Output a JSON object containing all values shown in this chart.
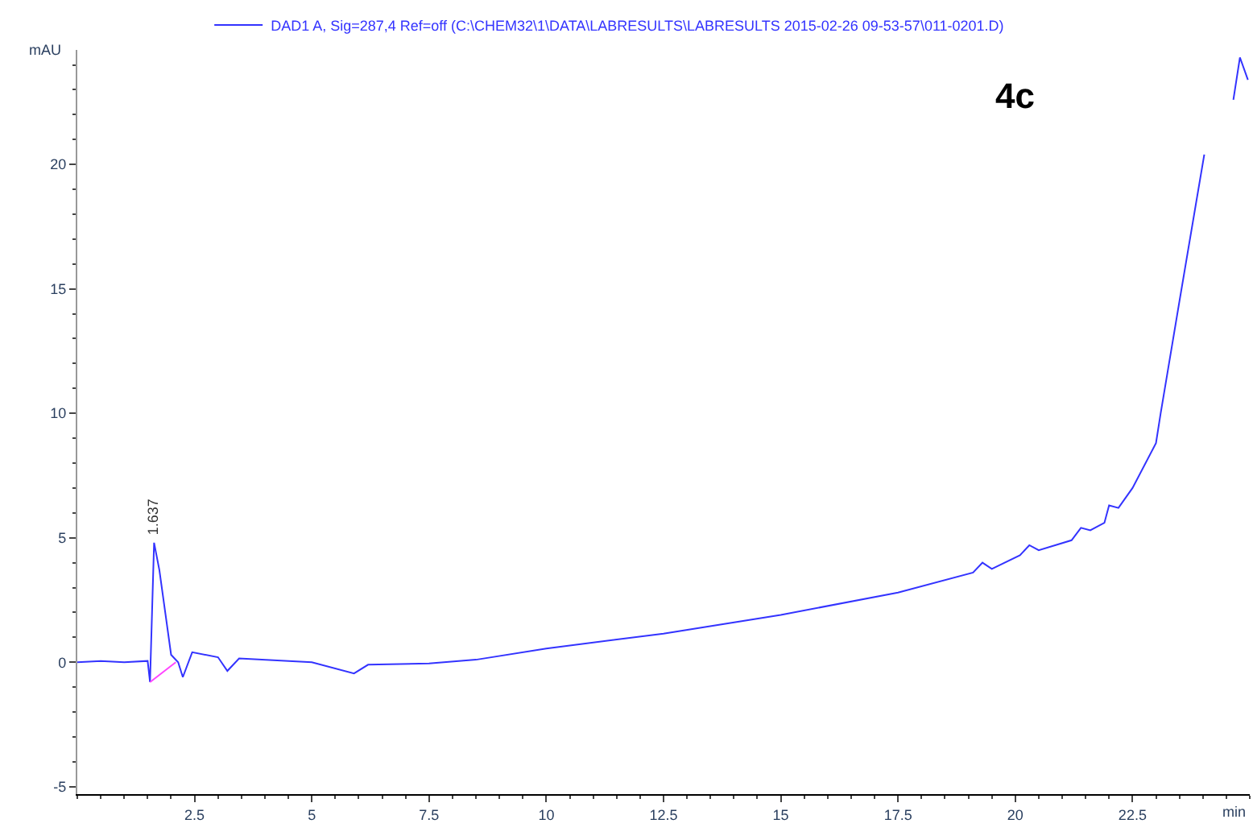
{
  "chart_data": {
    "type": "line",
    "title": "4c",
    "xlabel": "min",
    "ylabel": "mAU",
    "xlim": [
      0,
      25
    ],
    "ylim": [
      -5.3,
      24.6
    ],
    "xticks": [
      2.5,
      5,
      7.5,
      10,
      12.5,
      15,
      17.5,
      20,
      22.5
    ],
    "yticks": [
      -5,
      0,
      5,
      10,
      15,
      20
    ],
    "legend": "top left",
    "marker": "none",
    "line_style": "solid",
    "annotations": [
      {
        "text": "1.637",
        "x": 1.637,
        "y": 4.8
      }
    ],
    "series": [
      {
        "name": "DAD1 A, Sig=287,4 Ref=off (C:\\CHEM32\\1\\DATA\\LABRESULTS\\LABRESULTS 2015-02-26 09-53-57\\011-0201.D)",
        "color": "#3333ff",
        "x": [
          0,
          0.5,
          1.0,
          1.5,
          1.55,
          1.637,
          1.75,
          2.0,
          2.15,
          2.25,
          2.45,
          3.0,
          3.2,
          3.45,
          5.0,
          5.9,
          6.2,
          7.5,
          8.5,
          10.0,
          12.5,
          15.0,
          17.5,
          19.1,
          19.3,
          19.5,
          20.1,
          20.3,
          20.5,
          21.2,
          21.4,
          21.6,
          21.9,
          22.0,
          22.2,
          22.5,
          23.0,
          23.1,
          23.5,
          24.03,
          24.3,
          24.65,
          24.79,
          24.96
        ],
        "values": [
          0,
          0.05,
          0.0,
          0.05,
          -0.8,
          4.8,
          3.7,
          0.3,
          0.0,
          -0.6,
          0.4,
          0.2,
          -0.35,
          0.15,
          0.0,
          -0.45,
          -0.1,
          -0.05,
          0.1,
          0.55,
          1.15,
          1.9,
          2.8,
          3.6,
          4.0,
          3.75,
          4.3,
          4.7,
          4.5,
          4.9,
          5.4,
          5.3,
          5.6,
          6.3,
          6.2,
          7.0,
          8.8,
          10.0,
          14.5,
          20.4,
          null,
          22.6,
          24.3,
          23.4
        ]
      },
      {
        "color": "#ff44ff",
        "x": [
          1.55,
          2.1
        ],
        "values": [
          -0.8,
          0.0
        ]
      }
    ]
  }
}
